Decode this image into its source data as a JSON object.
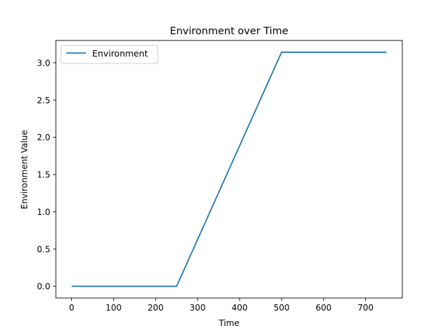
{
  "chart_data": {
    "type": "line",
    "title": "Environment over Time",
    "xlabel": "Time",
    "ylabel": "Environment Value",
    "xlim": [
      -37.5,
      787.5
    ],
    "ylim": [
      -0.157,
      3.299
    ],
    "xticks": [
      0,
      100,
      200,
      300,
      400,
      500,
      600,
      700
    ],
    "xtick_labels": [
      "0",
      "100",
      "200",
      "300",
      "400",
      "500",
      "600",
      "700"
    ],
    "yticks": [
      0.0,
      0.5,
      1.0,
      1.5,
      2.0,
      2.5,
      3.0
    ],
    "ytick_labels": [
      "0.0",
      "0.5",
      "1.0",
      "1.5",
      "2.0",
      "2.5",
      "3.0"
    ],
    "grid": false,
    "legend": "upper-left",
    "series": [
      {
        "name": "Environment",
        "color": "#1f77b4",
        "x": [
          0,
          250,
          500,
          750
        ],
        "y": [
          0.0,
          0.0,
          3.1416,
          3.1416
        ]
      }
    ]
  }
}
